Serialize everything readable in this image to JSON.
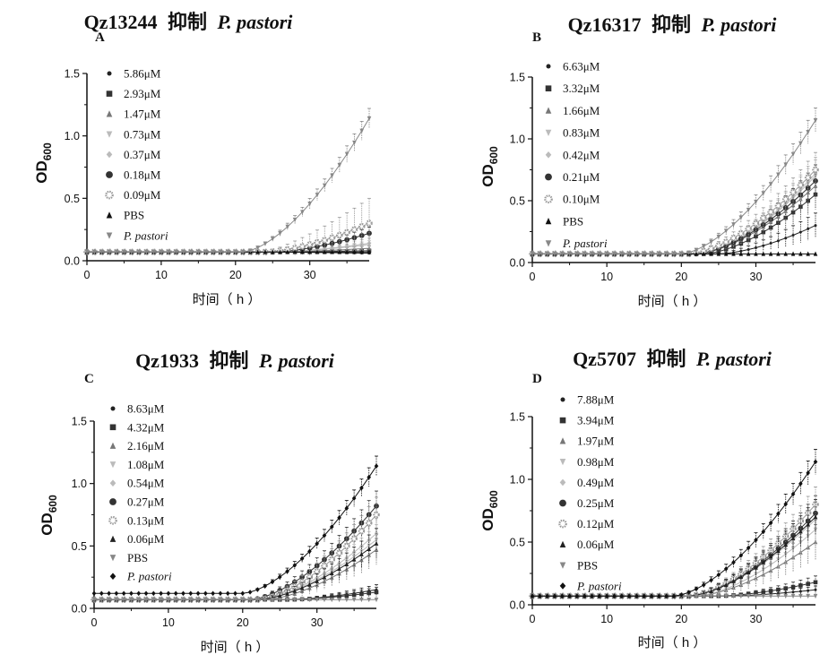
{
  "chart_data": [
    {
      "type": "line",
      "panel": "A",
      "title": {
        "compound": "Qz13244",
        "verb": "抑制",
        "species": "P. pastori"
      },
      "xlabel": "时间（ h ）",
      "ylabel": {
        "main": "OD",
        "sub": "600"
      },
      "xlim": [
        0,
        38
      ],
      "ylim": [
        0,
        1.5
      ],
      "xticks": [
        "0",
        "10",
        "20",
        "30"
      ],
      "yticks": [
        "0.0",
        "0.5",
        "1.0",
        "1.5"
      ],
      "legend_position": "top-left",
      "grid": false,
      "series": [
        {
          "name": "5.86μM",
          "marker": "circle-small",
          "color": "#222222",
          "start": 0.07,
          "final": 0.06,
          "onset": 22,
          "err": 0.01
        },
        {
          "name": "2.93μM",
          "marker": "square",
          "color": "#333333",
          "start": 0.07,
          "final": 0.08,
          "onset": 25,
          "err": 0.01
        },
        {
          "name": "1.47μM",
          "marker": "triangle",
          "color": "#777777",
          "start": 0.07,
          "final": 0.1,
          "onset": 25,
          "err": 0.02
        },
        {
          "name": "0.73μM",
          "marker": "tri-down",
          "color": "#bbbbbb",
          "start": 0.07,
          "final": 0.13,
          "onset": 25,
          "err": 0.03
        },
        {
          "name": "0.37μM",
          "marker": "diamond",
          "color": "#bbbbbb",
          "start": 0.07,
          "final": 0.14,
          "onset": 25,
          "err": 0.04
        },
        {
          "name": "0.18μM",
          "marker": "circle",
          "color": "#333333",
          "start": 0.07,
          "final": 0.22,
          "onset": 25,
          "err": 0.05
        },
        {
          "name": "0.09μM",
          "marker": "circle-hatched",
          "color": "#999999",
          "start": 0.07,
          "final": 0.3,
          "onset": 24,
          "err": 0.2
        },
        {
          "name": "PBS",
          "marker": "triangle",
          "color": "#111111",
          "start": 0.07,
          "final": 0.05,
          "onset": 0,
          "err": 0.01
        },
        {
          "name": "P. pastori",
          "marker": "tri-down",
          "color": "#888888",
          "start": 0.07,
          "final": 1.14,
          "onset": 21,
          "err": 0.08
        }
      ]
    },
    {
      "type": "line",
      "panel": "B",
      "title": {
        "compound": "Qz16317",
        "verb": "抑制",
        "species": "P. pastori"
      },
      "xlabel": "时间（ h ）",
      "ylabel": {
        "main": "OD",
        "sub": "600"
      },
      "xlim": [
        0,
        38
      ],
      "ylim": [
        0,
        1.5
      ],
      "xticks": [
        "0",
        "10",
        "20",
        "30"
      ],
      "yticks": [
        "0.0",
        "0.5",
        "1.0",
        "1.5"
      ],
      "legend_position": "top-left",
      "grid": false,
      "series": [
        {
          "name": "6.63μM",
          "marker": "circle-small",
          "color": "#222222",
          "start": 0.07,
          "final": 0.3,
          "onset": 25,
          "err": 0.1
        },
        {
          "name": "3.32μM",
          "marker": "square",
          "color": "#333333",
          "start": 0.07,
          "final": 0.55,
          "onset": 23,
          "err": 0.12
        },
        {
          "name": "1.66μM",
          "marker": "triangle",
          "color": "#777777",
          "start": 0.07,
          "final": 0.62,
          "onset": 22,
          "err": 0.12
        },
        {
          "name": "0.83μM",
          "marker": "tri-down",
          "color": "#bbbbbb",
          "start": 0.07,
          "final": 0.7,
          "onset": 22,
          "err": 0.13
        },
        {
          "name": "0.42μM",
          "marker": "diamond",
          "color": "#bbbbbb",
          "start": 0.07,
          "final": 0.72,
          "onset": 22,
          "err": 0.13
        },
        {
          "name": "0.21μM",
          "marker": "circle",
          "color": "#333333",
          "start": 0.07,
          "final": 0.66,
          "onset": 22,
          "err": 0.13
        },
        {
          "name": "0.10μM",
          "marker": "circle-hatched",
          "color": "#999999",
          "start": 0.07,
          "final": 0.75,
          "onset": 21,
          "err": 0.14
        },
        {
          "name": "PBS",
          "marker": "triangle",
          "color": "#111111",
          "start": 0.07,
          "final": 0.05,
          "onset": 0,
          "err": 0.01
        },
        {
          "name": "P. pastori",
          "marker": "tri-down",
          "color": "#888888",
          "start": 0.07,
          "final": 1.15,
          "onset": 20,
          "err": 0.1
        }
      ]
    },
    {
      "type": "line",
      "panel": "C",
      "title": {
        "compound": "Qz1933",
        "verb": "抑制",
        "species": "P. pastori"
      },
      "xlabel": "时间（ h ）",
      "ylabel": {
        "main": "OD",
        "sub": "600"
      },
      "xlim": [
        0,
        38
      ],
      "ylim": [
        0,
        1.5
      ],
      "xticks": [
        "0",
        "10",
        "20",
        "30"
      ],
      "yticks": [
        "0.0",
        "0.5",
        "1.0",
        "1.5"
      ],
      "legend_position": "top-left",
      "grid": false,
      "series": [
        {
          "name": "8.63μM",
          "marker": "circle-small",
          "color": "#222222",
          "start": 0.07,
          "final": 0.15,
          "onset": 26,
          "err": 0.04
        },
        {
          "name": "4.32μM",
          "marker": "square",
          "color": "#333333",
          "start": 0.07,
          "final": 0.13,
          "onset": 26,
          "err": 0.04
        },
        {
          "name": "2.16μM",
          "marker": "triangle",
          "color": "#777777",
          "start": 0.07,
          "final": 0.47,
          "onset": 23,
          "err": 0.12
        },
        {
          "name": "1.08μM",
          "marker": "tri-down",
          "color": "#bbbbbb",
          "start": 0.07,
          "final": 0.55,
          "onset": 22,
          "err": 0.12
        },
        {
          "name": "0.54μM",
          "marker": "diamond",
          "color": "#bbbbbb",
          "start": 0.07,
          "final": 0.6,
          "onset": 22,
          "err": 0.12
        },
        {
          "name": "0.27μM",
          "marker": "circle",
          "color": "#333333",
          "start": 0.07,
          "final": 0.82,
          "onset": 21,
          "err": 0.12
        },
        {
          "name": "0.13μM",
          "marker": "circle-hatched",
          "color": "#999999",
          "start": 0.07,
          "final": 0.75,
          "onset": 22,
          "err": 0.14
        },
        {
          "name": "0.06μM",
          "marker": "triangle",
          "color": "#222222",
          "start": 0.07,
          "final": 0.52,
          "onset": 22,
          "err": 0.12
        },
        {
          "name": "PBS",
          "marker": "tri-down",
          "color": "#888888",
          "start": 0.07,
          "final": 0.05,
          "onset": 0,
          "err": 0.01
        },
        {
          "name": "P. pastori",
          "marker": "diamond",
          "color": "#111111",
          "start": 0.12,
          "final": 1.14,
          "onset": 20,
          "err": 0.08
        }
      ]
    },
    {
      "type": "line",
      "panel": "D",
      "title": {
        "compound": "Qz5707",
        "verb": "抑制",
        "species": "P. pastori"
      },
      "xlabel": "时间（ h ）",
      "ylabel": {
        "main": "OD",
        "sub": "600"
      },
      "xlim": [
        0,
        38
      ],
      "ylim": [
        0,
        1.5
      ],
      "xticks": [
        "0",
        "10",
        "20",
        "30"
      ],
      "yticks": [
        "0.0",
        "0.5",
        "1.0",
        "1.5"
      ],
      "legend_position": "top-left",
      "grid": false,
      "series": [
        {
          "name": "7.88μM",
          "marker": "circle-small",
          "color": "#222222",
          "start": 0.07,
          "final": 0.12,
          "onset": 26,
          "err": 0.03
        },
        {
          "name": "3.94μM",
          "marker": "square",
          "color": "#333333",
          "start": 0.07,
          "final": 0.18,
          "onset": 25,
          "err": 0.05
        },
        {
          "name": "1.97μM",
          "marker": "triangle",
          "color": "#777777",
          "start": 0.07,
          "final": 0.5,
          "onset": 22,
          "err": 0.14
        },
        {
          "name": "0.98μM",
          "marker": "tri-down",
          "color": "#bbbbbb",
          "start": 0.07,
          "final": 0.6,
          "onset": 22,
          "err": 0.14
        },
        {
          "name": "0.49μM",
          "marker": "diamond",
          "color": "#bbbbbb",
          "start": 0.07,
          "final": 0.68,
          "onset": 21,
          "err": 0.14
        },
        {
          "name": "0.25μM",
          "marker": "circle",
          "color": "#333333",
          "start": 0.07,
          "final": 0.73,
          "onset": 21,
          "err": 0.14
        },
        {
          "name": "0.12μM",
          "marker": "circle-hatched",
          "color": "#999999",
          "start": 0.07,
          "final": 0.8,
          "onset": 21,
          "err": 0.14
        },
        {
          "name": "0.06μM",
          "marker": "triangle",
          "color": "#222222",
          "start": 0.07,
          "final": 0.7,
          "onset": 21,
          "err": 0.14
        },
        {
          "name": "PBS",
          "marker": "tri-down",
          "color": "#888888",
          "start": 0.07,
          "final": 0.05,
          "onset": 0,
          "err": 0.01
        },
        {
          "name": "P. pastori",
          "marker": "diamond",
          "color": "#111111",
          "start": 0.07,
          "final": 1.14,
          "onset": 19,
          "err": 0.1
        }
      ]
    }
  ]
}
